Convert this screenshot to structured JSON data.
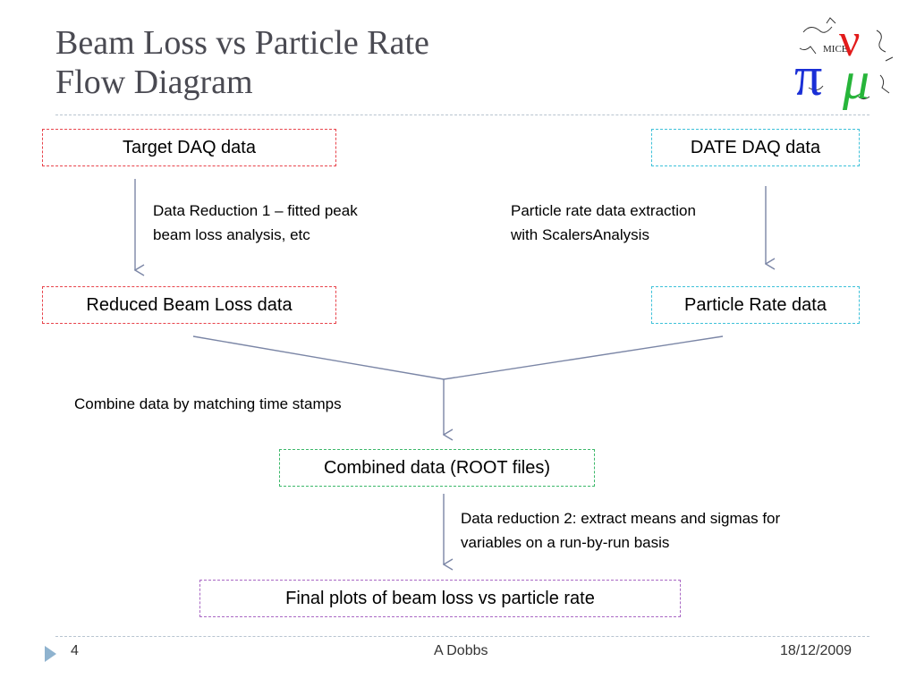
{
  "slide": {
    "title_line1": "Beam Loss vs Particle Rate",
    "title_line2": "Flow Diagram"
  },
  "boxes": {
    "target_daq": "Target DAQ data",
    "date_daq": "DATE DAQ data",
    "reduced_beam_loss": "Reduced Beam Loss data",
    "particle_rate": "Particle Rate data",
    "combined": "Combined data (ROOT files)",
    "final_plots": "Final plots of beam loss vs particle rate"
  },
  "notes": {
    "reduction1_line1": "Data Reduction 1 – fitted peak",
    "reduction1_line2": "beam loss analysis, etc",
    "extraction_line1": "Particle rate data extraction",
    "extraction_line2": "with ScalersAnalysis",
    "combine": "Combine data by matching time stamps",
    "reduction2_line1": "Data reduction 2: extract means and sigmas for",
    "reduction2_line2": "variables on a run-by-run basis"
  },
  "logo": {
    "text": "MICE",
    "glyph_pi": "π",
    "glyph_nu": "ν",
    "glyph_mu": "μ"
  },
  "footer": {
    "page_number": "4",
    "author": "A Dobbs",
    "date": "18/12/2009"
  },
  "colors": {
    "red_border": "#e8434b",
    "cyan_border": "#3ec1d9",
    "green_border": "#3cb86a",
    "purple_border": "#a968c4",
    "arrow": "#7b86a6",
    "title": "#4a4a52",
    "footer_arrow": "#8fb3cf"
  }
}
